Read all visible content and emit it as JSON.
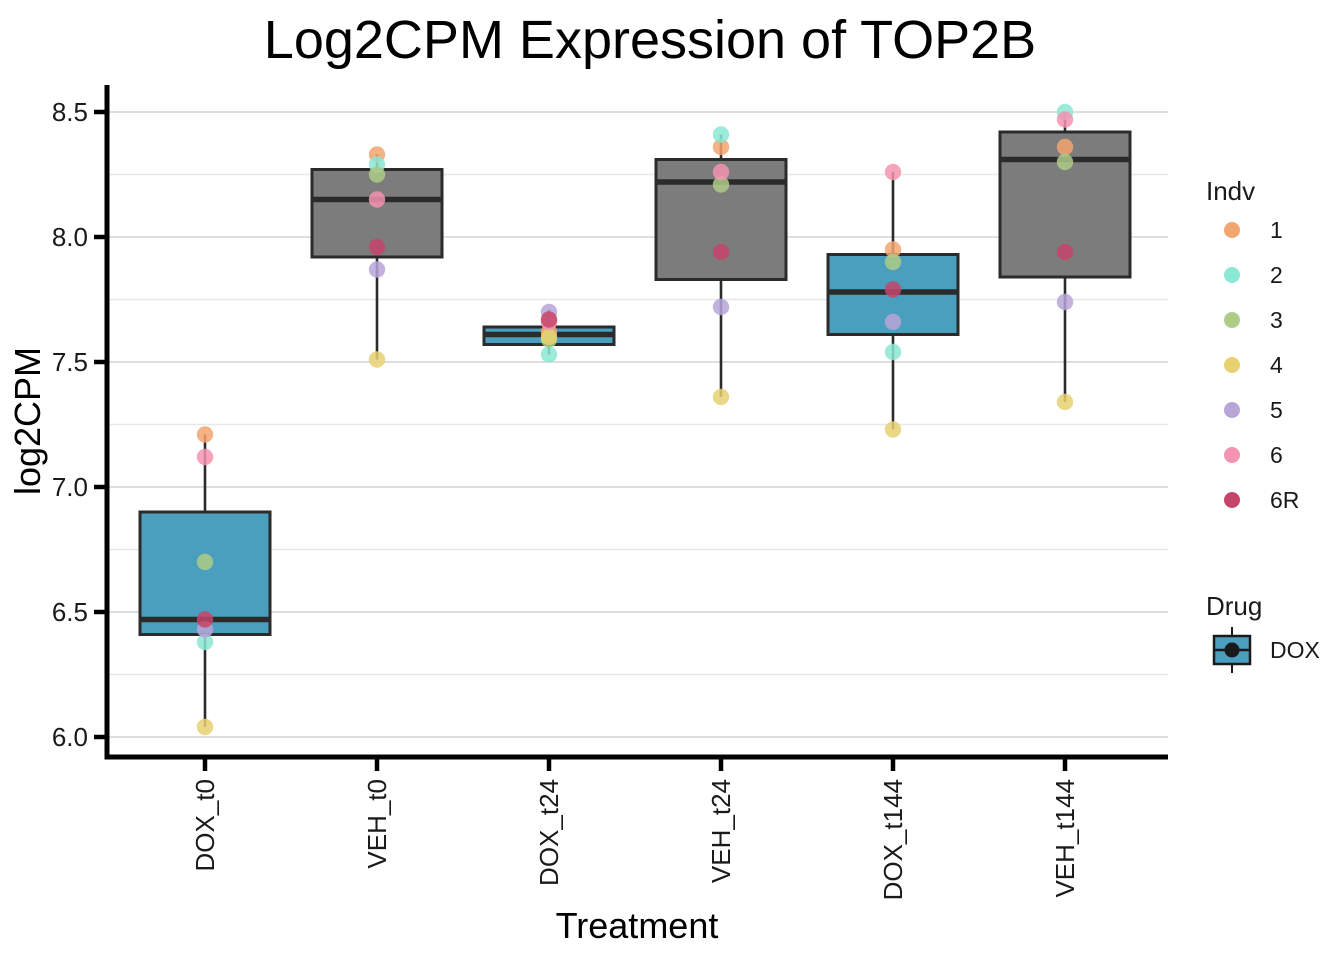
{
  "title": "Log2CPM Expression of TOP2B",
  "x_axis": {
    "label": "Treatment"
  },
  "y_axis": {
    "label": "log2CPM"
  },
  "legend": {
    "indv": {
      "title": "Indv",
      "items": [
        {
          "label": "1",
          "color": "#F3A56F"
        },
        {
          "label": "2",
          "color": "#8BE8D4"
        },
        {
          "label": "3",
          "color": "#AECB87"
        },
        {
          "label": "4",
          "color": "#E7D171"
        },
        {
          "label": "5",
          "color": "#B7A5D8"
        },
        {
          "label": "6",
          "color": "#F494B0"
        },
        {
          "label": "6R",
          "color": "#C6456B"
        }
      ]
    },
    "drug": {
      "title": "Drug",
      "items": [
        {
          "label": "DOX",
          "color": "#4A9EBE"
        }
      ]
    }
  },
  "chart_data": {
    "type": "boxplot",
    "title": "Log2CPM Expression of TOP2B",
    "xlabel": "Treatment",
    "ylabel": "log2CPM",
    "categories": [
      "DOX_t0",
      "VEH_t0",
      "DOX_t24",
      "VEH_t24",
      "DOX_t144",
      "VEH_t144"
    ],
    "y_ticks": [
      6.0,
      6.5,
      7.0,
      7.5,
      8.0,
      8.5
    ],
    "y_minor_ticks": [
      6.25,
      6.75,
      7.25,
      7.75,
      8.25
    ],
    "ylim": [
      5.92,
      8.61
    ],
    "grid": true,
    "legend_position": "right",
    "drug_fill": {
      "DOX": "#4A9EBE",
      "VEH": "#7C7C7C"
    },
    "indv_colors": {
      "1": "#F3A56F",
      "2": "#8BE8D4",
      "3": "#AECB87",
      "4": "#E7D171",
      "5": "#B7A5D8",
      "6": "#F494B0",
      "6R": "#C6456B"
    },
    "boxes": [
      {
        "category": "DOX_t0",
        "drug": "DOX",
        "q1": 6.41,
        "median": 6.47,
        "q3": 6.9,
        "whisker_low": 6.04,
        "whisker_high": 7.21,
        "points": {
          "1": 7.21,
          "2": 6.38,
          "3": 6.7,
          "4": 6.04,
          "5": 6.43,
          "6": 7.12,
          "6R": 6.47
        }
      },
      {
        "category": "VEH_t0",
        "drug": "VEH",
        "q1": 7.92,
        "median": 8.15,
        "q3": 8.27,
        "whisker_low": 7.51,
        "whisker_high": 8.33,
        "points": {
          "1": 8.33,
          "2": 8.29,
          "3": 8.25,
          "4": 7.51,
          "5": 7.87,
          "6": 8.15,
          "6R": 7.96
        }
      },
      {
        "category": "DOX_t24",
        "drug": "DOX",
        "q1": 7.57,
        "median": 7.61,
        "q3": 7.64,
        "whisker_low": 7.53,
        "whisker_high": 7.71,
        "points": {
          "1": 7.62,
          "2": 7.53,
          "3": 7.59,
          "4": 7.6,
          "5": 7.7,
          "6": 7.66,
          "6R": 7.67
        }
      },
      {
        "category": "VEH_t24",
        "drug": "VEH",
        "q1": 7.83,
        "median": 8.22,
        "q3": 8.31,
        "whisker_low": 7.36,
        "whisker_high": 8.41,
        "points": {
          "1": 8.36,
          "2": 8.41,
          "3": 8.21,
          "4": 7.36,
          "5": 7.72,
          "6": 8.26,
          "6R": 7.94
        }
      },
      {
        "category": "DOX_t144",
        "drug": "DOX",
        "q1": 7.61,
        "median": 7.78,
        "q3": 7.93,
        "whisker_low": 7.23,
        "whisker_high": 8.26,
        "points": {
          "1": 7.95,
          "2": 7.54,
          "3": 7.9,
          "4": 7.23,
          "5": 7.66,
          "6": 8.26,
          "6R": 7.79
        }
      },
      {
        "category": "VEH_t144",
        "drug": "VEH",
        "q1": 7.84,
        "median": 8.31,
        "q3": 8.42,
        "whisker_low": 7.34,
        "whisker_high": 8.5,
        "points": {
          "1": 8.36,
          "2": 8.5,
          "3": 8.3,
          "4": 7.34,
          "5": 7.74,
          "6": 8.47,
          "6R": 7.94
        }
      }
    ]
  }
}
